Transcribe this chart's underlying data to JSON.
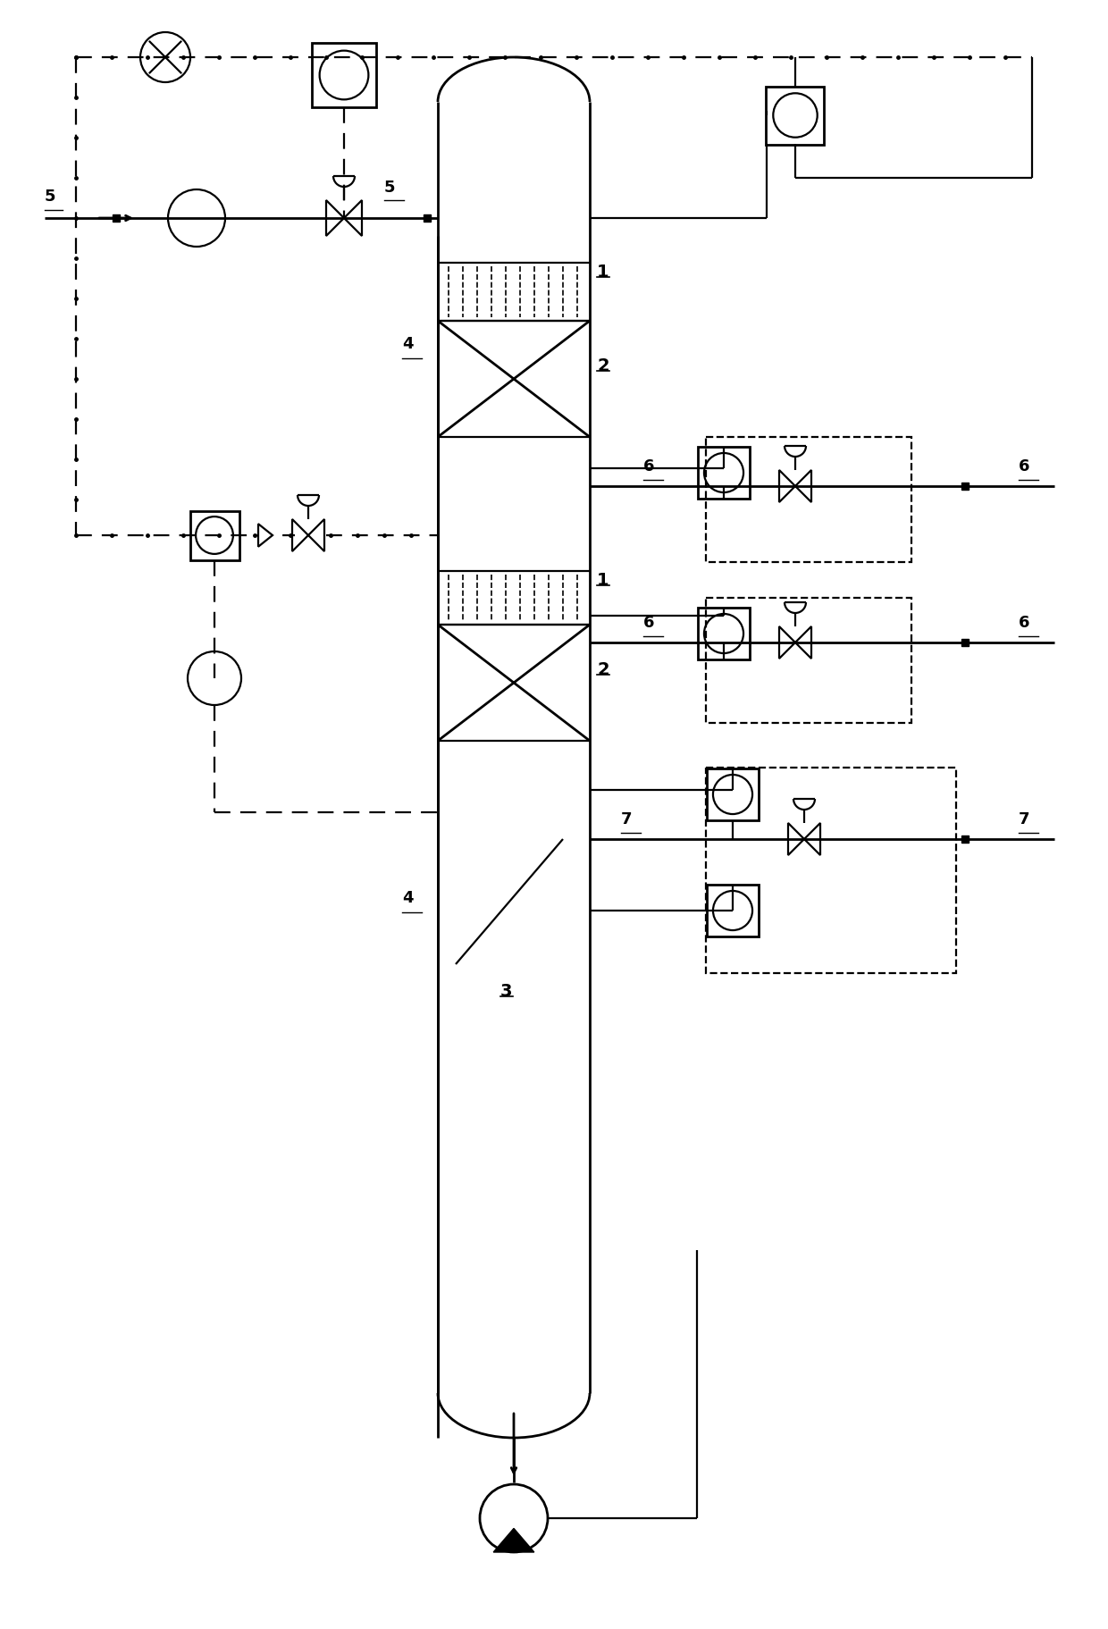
{
  "bg_color": "#ffffff",
  "lc": "#000000",
  "lw": 1.6,
  "lw2": 2.0,
  "fig_w": 12.4,
  "fig_h": 18.24
}
